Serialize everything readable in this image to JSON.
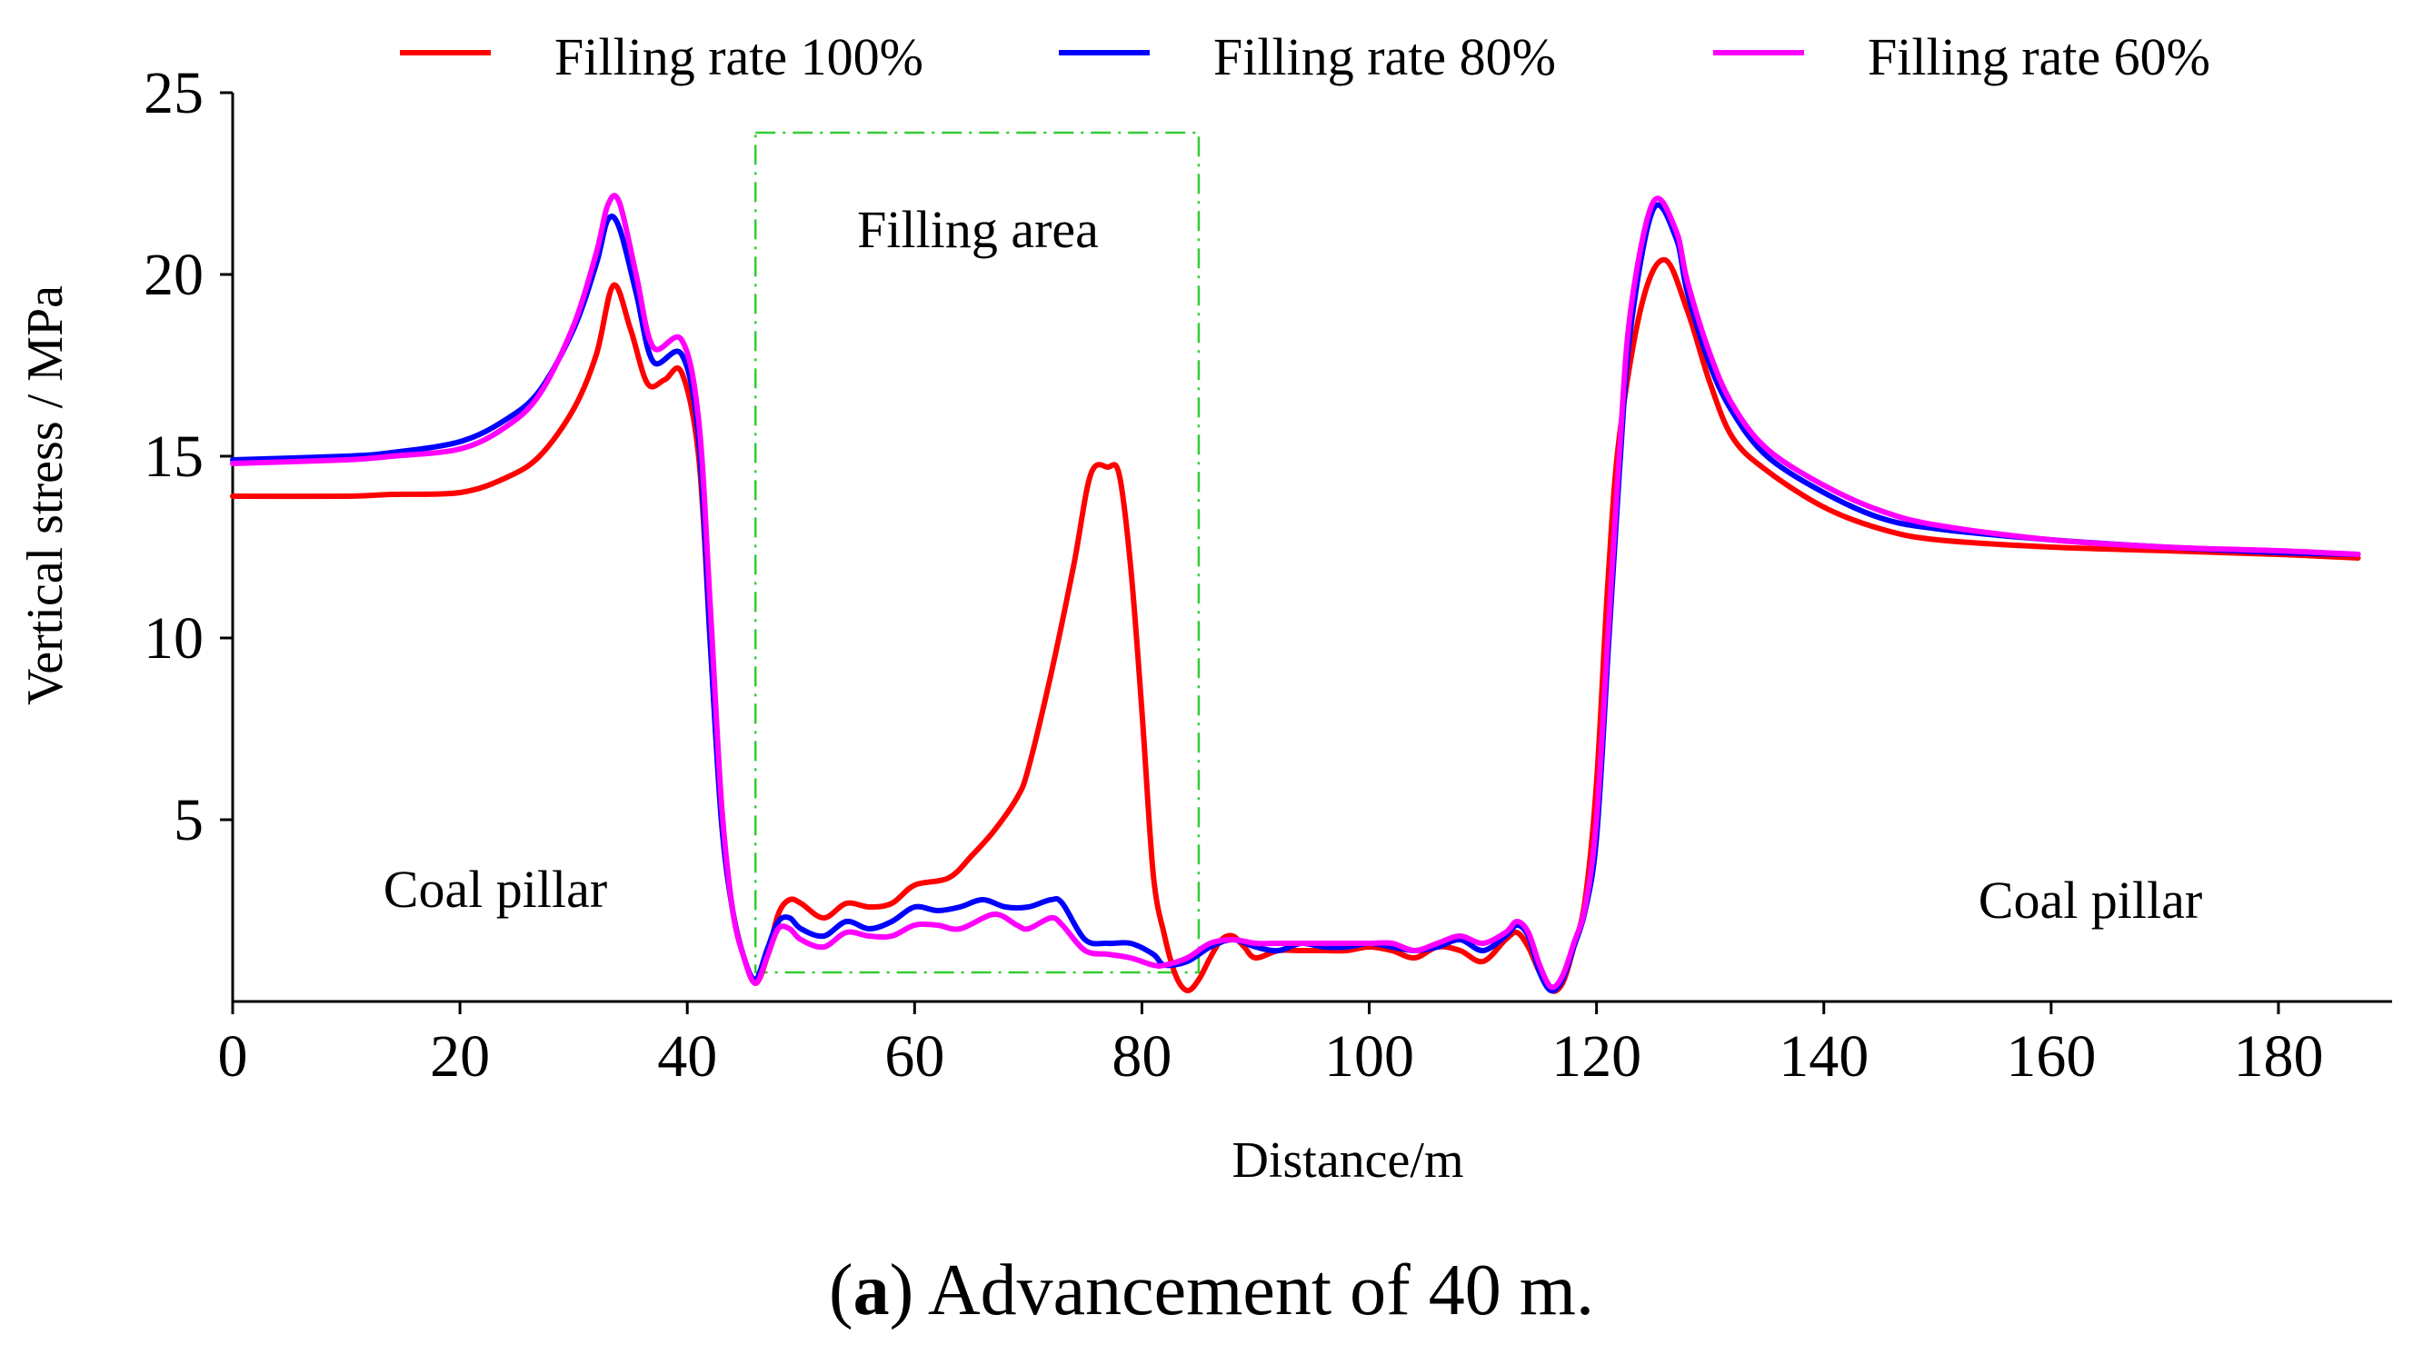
{
  "chart_data": {
    "type": "line",
    "xlabel": "Distance/m",
    "ylabel": "Vertical stress / MPa",
    "xlim": [
      0,
      190
    ],
    "ylim": [
      0,
      25
    ],
    "xticks": [
      0,
      20,
      40,
      60,
      80,
      100,
      120,
      140,
      160,
      180
    ],
    "yticks": [
      5,
      10,
      15,
      20,
      25
    ],
    "grid": false,
    "legend_position": "top",
    "series": [
      {
        "name": "Filling rate 100%",
        "color": "#ff0000",
        "x": [
          0,
          10,
          14,
          20,
          24,
          27,
          30,
          32,
          33.5,
          35,
          36.5,
          38,
          39.5,
          41,
          42,
          43,
          44,
          45,
          46,
          47,
          48,
          49,
          50,
          52,
          54,
          56,
          58,
          60,
          63,
          65,
          67,
          69,
          70,
          72,
          74,
          75.5,
          77,
          78,
          79,
          80,
          81,
          82,
          83,
          84,
          85,
          86,
          87,
          88,
          89,
          90,
          92,
          94,
          96,
          98,
          100,
          102,
          104,
          106,
          108,
          110,
          112,
          113,
          114,
          115,
          116,
          117,
          118,
          119,
          120,
          121,
          122,
          124,
          126,
          128,
          130,
          132,
          135,
          140,
          145,
          150,
          160,
          170,
          180,
          187
        ],
        "values": [
          13.9,
          13.9,
          13.95,
          14.0,
          14.4,
          15.0,
          16.3,
          17.8,
          19.7,
          18.5,
          17.0,
          17.1,
          17.3,
          15.0,
          10.0,
          5.0,
          2.5,
          1.2,
          0.5,
          1.2,
          2.4,
          2.8,
          2.7,
          2.3,
          2.7,
          2.6,
          2.7,
          3.2,
          3.4,
          4.0,
          4.7,
          5.6,
          6.4,
          9.0,
          12.0,
          14.5,
          14.7,
          14.5,
          12.0,
          8.0,
          3.5,
          1.8,
          0.7,
          0.3,
          0.6,
          1.2,
          1.7,
          1.8,
          1.5,
          1.2,
          1.4,
          1.4,
          1.4,
          1.4,
          1.5,
          1.4,
          1.2,
          1.5,
          1.4,
          1.1,
          1.7,
          1.9,
          1.5,
          0.8,
          0.3,
          0.5,
          1.5,
          2.8,
          6.0,
          11.5,
          15.5,
          19.2,
          20.4,
          19.0,
          17.0,
          15.5,
          14.6,
          13.6,
          13.0,
          12.7,
          12.5,
          12.4,
          12.3,
          12.2
        ]
      },
      {
        "name": "Filling rate 80%",
        "color": "#0000ff",
        "x": [
          0,
          10,
          14,
          20,
          24,
          27,
          30,
          32,
          33,
          34,
          35.5,
          37,
          39.5,
          41,
          42,
          43,
          44,
          45,
          46,
          47,
          48,
          49,
          50,
          52,
          54,
          56,
          58,
          60,
          62,
          64,
          66,
          68,
          70,
          72,
          73,
          75,
          77,
          79,
          81,
          82,
          84,
          86,
          88,
          90,
          92,
          94,
          96,
          98,
          100,
          102,
          104,
          106,
          108,
          110,
          112,
          113,
          114,
          115,
          116,
          117,
          118,
          119,
          120,
          121,
          122,
          123,
          125,
          127,
          128,
          130,
          132,
          135,
          140,
          145,
          150,
          160,
          170,
          180,
          187
        ],
        "values": [
          14.9,
          15.0,
          15.1,
          15.4,
          16.0,
          16.8,
          18.5,
          20.3,
          21.5,
          21.3,
          19.5,
          17.6,
          17.8,
          15.5,
          10.0,
          5.0,
          2.5,
          1.2,
          0.6,
          1.4,
          2.2,
          2.3,
          2.0,
          1.8,
          2.2,
          2.0,
          2.2,
          2.6,
          2.5,
          2.6,
          2.8,
          2.6,
          2.6,
          2.8,
          2.7,
          1.7,
          1.6,
          1.6,
          1.3,
          1.0,
          1.1,
          1.5,
          1.7,
          1.5,
          1.4,
          1.6,
          1.5,
          1.5,
          1.6,
          1.5,
          1.4,
          1.5,
          1.7,
          1.4,
          1.8,
          2.1,
          1.8,
          0.8,
          0.3,
          0.6,
          1.5,
          2.5,
          4.5,
          9.5,
          14.5,
          18.5,
          21.8,
          21.0,
          19.5,
          17.5,
          16.2,
          15.0,
          14.0,
          13.3,
          13.0,
          12.7,
          12.5,
          12.35,
          12.3
        ]
      },
      {
        "name": "Filling rate 60%",
        "color": "#ff00ff",
        "x": [
          0,
          10,
          14,
          20,
          24,
          27,
          30,
          32,
          33,
          34,
          35.5,
          37,
          39.5,
          41,
          42,
          43,
          44,
          45,
          46,
          47,
          48,
          49,
          50,
          52,
          54,
          56,
          58,
          60,
          62,
          64,
          67,
          69,
          70,
          72,
          73,
          75,
          77,
          79,
          81,
          82,
          84,
          86,
          88,
          90,
          92,
          94,
          96,
          98,
          100,
          102,
          104,
          106,
          108,
          110,
          112,
          113,
          114,
          115,
          116,
          117,
          118,
          119,
          120,
          121,
          122,
          123,
          125,
          127,
          128,
          130,
          132,
          135,
          140,
          145,
          150,
          160,
          170,
          180,
          187
        ],
        "values": [
          14.8,
          14.9,
          15.0,
          15.2,
          15.8,
          16.7,
          18.6,
          20.6,
          21.9,
          22.0,
          20.0,
          18.0,
          18.2,
          16.0,
          11.0,
          5.5,
          2.5,
          1.2,
          0.5,
          1.2,
          2.0,
          2.0,
          1.7,
          1.5,
          1.9,
          1.8,
          1.8,
          2.1,
          2.1,
          2.0,
          2.4,
          2.1,
          2.0,
          2.3,
          2.1,
          1.4,
          1.3,
          1.2,
          1.0,
          1.0,
          1.2,
          1.6,
          1.7,
          1.6,
          1.6,
          1.6,
          1.6,
          1.6,
          1.6,
          1.6,
          1.4,
          1.6,
          1.8,
          1.6,
          1.9,
          2.2,
          1.9,
          1.0,
          0.4,
          0.7,
          1.6,
          2.6,
          5.0,
          10.0,
          15.0,
          19.0,
          22.0,
          21.2,
          19.8,
          17.8,
          16.4,
          15.2,
          14.2,
          13.5,
          13.1,
          12.7,
          12.5,
          12.4,
          12.3
        ]
      }
    ],
    "annotations": [
      {
        "text": "Filling area",
        "box_x": [
          46,
          85
        ],
        "box_y": [
          0.8,
          23.9
        ],
        "box_color": "#33cc33"
      },
      {
        "text": "Coal pillar",
        "side": "left"
      },
      {
        "text": "Coal pillar",
        "side": "right"
      }
    ]
  },
  "caption": {
    "label_bold": "a",
    "text": "Advancement of 40 m."
  }
}
